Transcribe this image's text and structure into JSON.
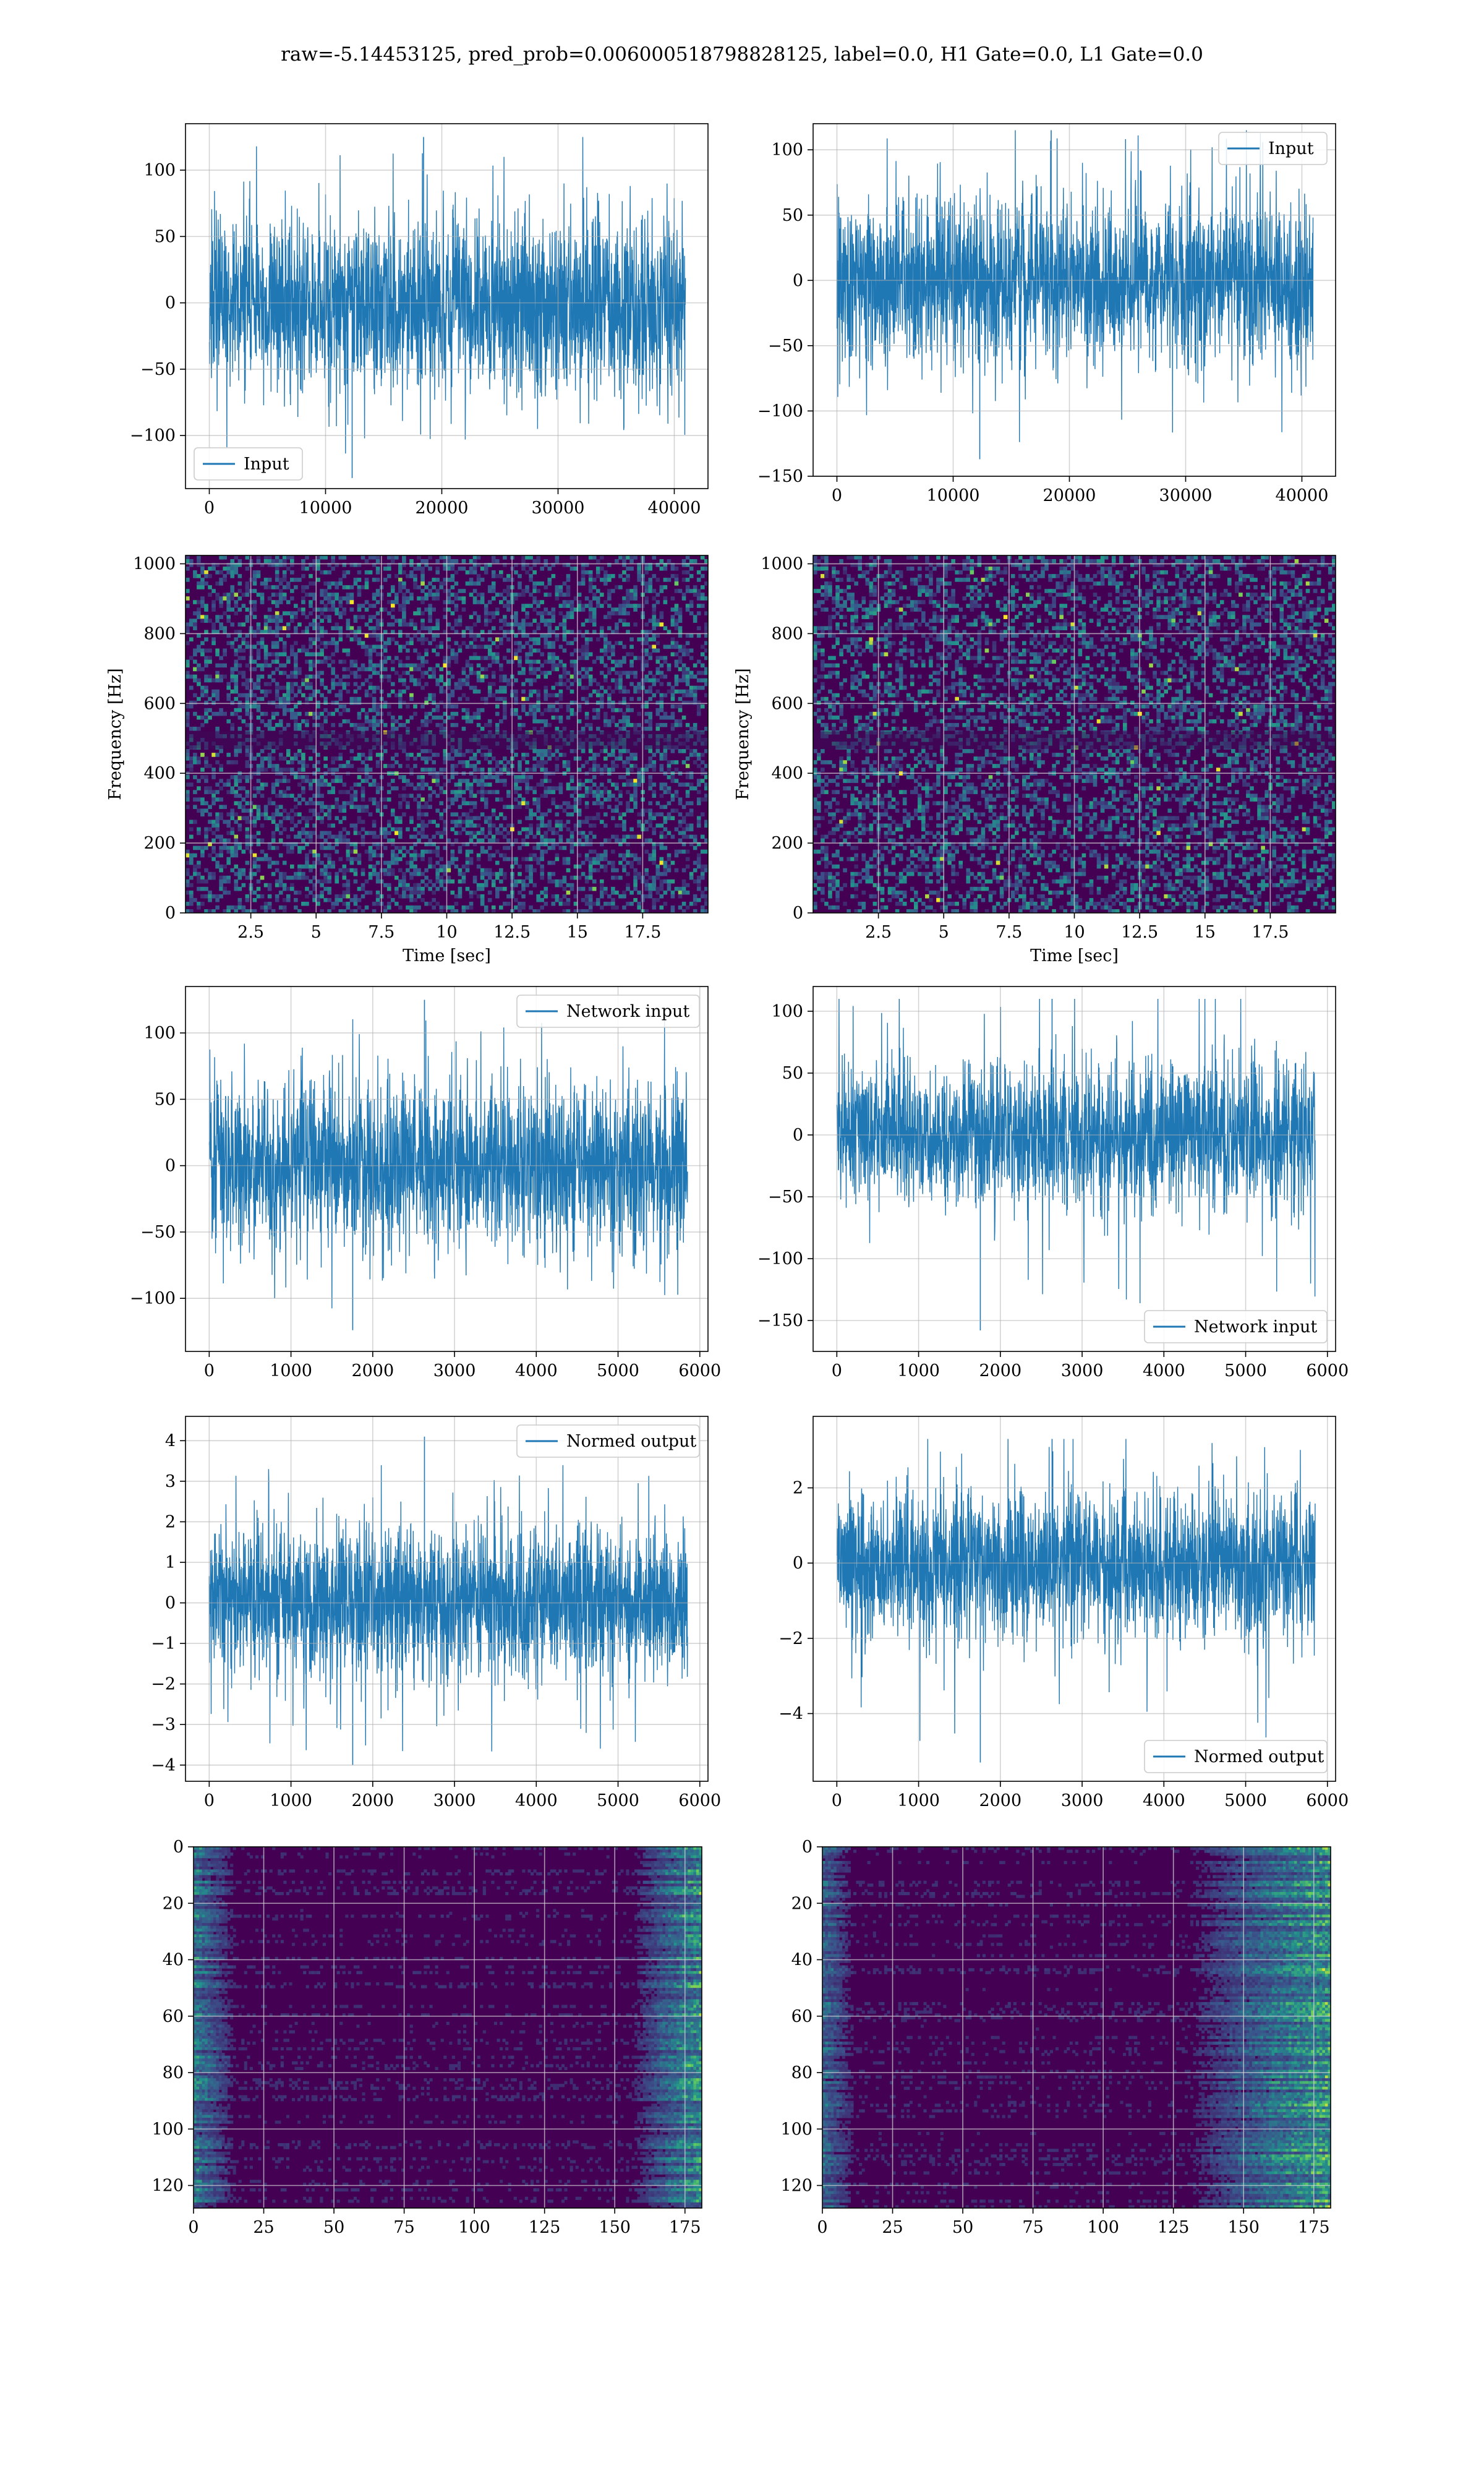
{
  "figure": {
    "title": "raw=-5.14453125, pred_prob=0.006000518798828125, label=0.0, H1 Gate=0.0, L1 Gate=0.0"
  },
  "colors": {
    "series": "#1f77b4",
    "grid": "#b0b0b0",
    "viridis_low": "#440154",
    "viridis_mid": "#21918c",
    "viridis_high": "#fde725"
  },
  "chart_data": [
    {
      "id": "input_h1",
      "type": "line",
      "title": "",
      "xlabel": "",
      "ylabel": "",
      "xlim": [
        -2048,
        42900
      ],
      "ylim": [
        -140,
        135
      ],
      "xticks": [
        0,
        10000,
        20000,
        30000,
        40000
      ],
      "yticks": [
        -100,
        -50,
        0,
        50,
        100
      ],
      "grid": true,
      "legend": {
        "label": "Input",
        "loc": "lower-left"
      },
      "series": [
        {
          "name": "Input",
          "x_range": [
            0,
            40960
          ],
          "envelope_p95": 60,
          "peak_max": 125,
          "peak_min": -132
        }
      ]
    },
    {
      "id": "input_l1",
      "type": "line",
      "title": "",
      "xlabel": "",
      "ylabel": "",
      "xlim": [
        -2048,
        42900
      ],
      "ylim": [
        -150,
        120
      ],
      "xticks": [
        0,
        10000,
        20000,
        30000,
        40000
      ],
      "yticks": [
        -150,
        -100,
        -50,
        0,
        50,
        100
      ],
      "grid": true,
      "legend": {
        "label": "Input",
        "loc": "upper-right"
      },
      "series": [
        {
          "name": "Input",
          "x_range": [
            0,
            40960
          ],
          "envelope_p95": 55,
          "peak_max": 115,
          "peak_min": -137
        }
      ]
    },
    {
      "id": "spectrogram_h1",
      "type": "heatmap",
      "title": "",
      "xlabel": "Time [sec]",
      "ylabel": "Frequency [Hz]",
      "xlim": [
        0,
        20
      ],
      "ylim": [
        0,
        1024
      ],
      "xticks": [
        2.5,
        5.0,
        7.5,
        10.0,
        12.5,
        15.0,
        17.5
      ],
      "yticks": [
        0,
        200,
        400,
        600,
        800,
        1000
      ],
      "grid": true,
      "colormap": "viridis"
    },
    {
      "id": "spectrogram_l1",
      "type": "heatmap",
      "title": "",
      "xlabel": "Time [sec]",
      "ylabel": "Frequency [Hz]",
      "xlim": [
        0,
        20
      ],
      "ylim": [
        0,
        1024
      ],
      "xticks": [
        2.5,
        5.0,
        7.5,
        10.0,
        12.5,
        15.0,
        17.5
      ],
      "yticks": [
        0,
        200,
        400,
        600,
        800,
        1000
      ],
      "grid": true,
      "colormap": "viridis"
    },
    {
      "id": "network_input_h1",
      "type": "line",
      "title": "",
      "xlabel": "",
      "ylabel": "",
      "xlim": [
        -290,
        6100
      ],
      "ylim": [
        -140,
        135
      ],
      "xticks": [
        0,
        1000,
        2000,
        3000,
        4000,
        5000,
        6000
      ],
      "yticks": [
        -100,
        -50,
        0,
        50,
        100
      ],
      "grid": true,
      "legend": {
        "label": "Network input",
        "loc": "upper-right"
      },
      "series": [
        {
          "name": "Network input",
          "x_range": [
            0,
            5850
          ],
          "envelope_p95": 55,
          "peak_max": 125,
          "peak_min": -124
        }
      ]
    },
    {
      "id": "network_input_l1",
      "type": "line",
      "title": "",
      "xlabel": "",
      "ylabel": "",
      "xlim": [
        -290,
        6100
      ],
      "ylim": [
        -175,
        120
      ],
      "xticks": [
        0,
        1000,
        2000,
        3000,
        4000,
        5000,
        6000
      ],
      "yticks": [
        -150,
        -100,
        -50,
        0,
        50,
        100
      ],
      "grid": true,
      "legend": {
        "label": "Network input",
        "loc": "lower-right"
      },
      "series": [
        {
          "name": "Network input",
          "x_range": [
            0,
            5850
          ],
          "envelope_p95": 52,
          "peak_max": 110,
          "peak_min": -158
        }
      ]
    },
    {
      "id": "normed_output_h1",
      "type": "line",
      "title": "",
      "xlabel": "",
      "ylabel": "",
      "xlim": [
        -290,
        6100
      ],
      "ylim": [
        -4.4,
        4.6
      ],
      "xticks": [
        0,
        1000,
        2000,
        3000,
        4000,
        5000,
        6000
      ],
      "yticks": [
        -4,
        -3,
        -2,
        -1,
        0,
        1,
        2,
        3,
        4
      ],
      "grid": true,
      "legend": {
        "label": "Normed output",
        "loc": "upper-right"
      },
      "series": [
        {
          "name": "Normed output",
          "x_range": [
            0,
            5850
          ],
          "envelope_p95": 1.7,
          "peak_max": 4.1,
          "peak_min": -4.0
        }
      ]
    },
    {
      "id": "normed_output_l1",
      "type": "line",
      "title": "",
      "xlabel": "",
      "ylabel": "",
      "xlim": [
        -290,
        6100
      ],
      "ylim": [
        -5.8,
        3.9
      ],
      "xticks": [
        0,
        1000,
        2000,
        3000,
        4000,
        5000,
        6000
      ],
      "yticks": [
        -4,
        -2,
        0,
        2
      ],
      "grid": true,
      "legend": {
        "label": "Normed output",
        "loc": "lower-right"
      },
      "series": [
        {
          "name": "Normed output",
          "x_range": [
            0,
            5850
          ],
          "envelope_p95": 1.7,
          "peak_max": 3.3,
          "peak_min": -5.3
        }
      ]
    },
    {
      "id": "feature_map_h1",
      "type": "heatmap",
      "title": "",
      "xlabel": "",
      "ylabel": "",
      "xlim": [
        0,
        181
      ],
      "ylim": [
        128,
        0
      ],
      "xticks": [
        0,
        25,
        50,
        75,
        100,
        125,
        150,
        175
      ],
      "yticks": [
        0,
        20,
        40,
        60,
        80,
        100,
        120
      ],
      "grid": true,
      "colormap": "viridis"
    },
    {
      "id": "feature_map_l1",
      "type": "heatmap",
      "title": "",
      "xlabel": "",
      "ylabel": "",
      "xlim": [
        0,
        181
      ],
      "ylim": [
        128,
        0
      ],
      "xticks": [
        0,
        25,
        50,
        75,
        100,
        125,
        150,
        175
      ],
      "yticks": [
        0,
        20,
        40,
        60,
        80,
        100,
        120
      ],
      "grid": true,
      "colormap": "viridis"
    }
  ]
}
